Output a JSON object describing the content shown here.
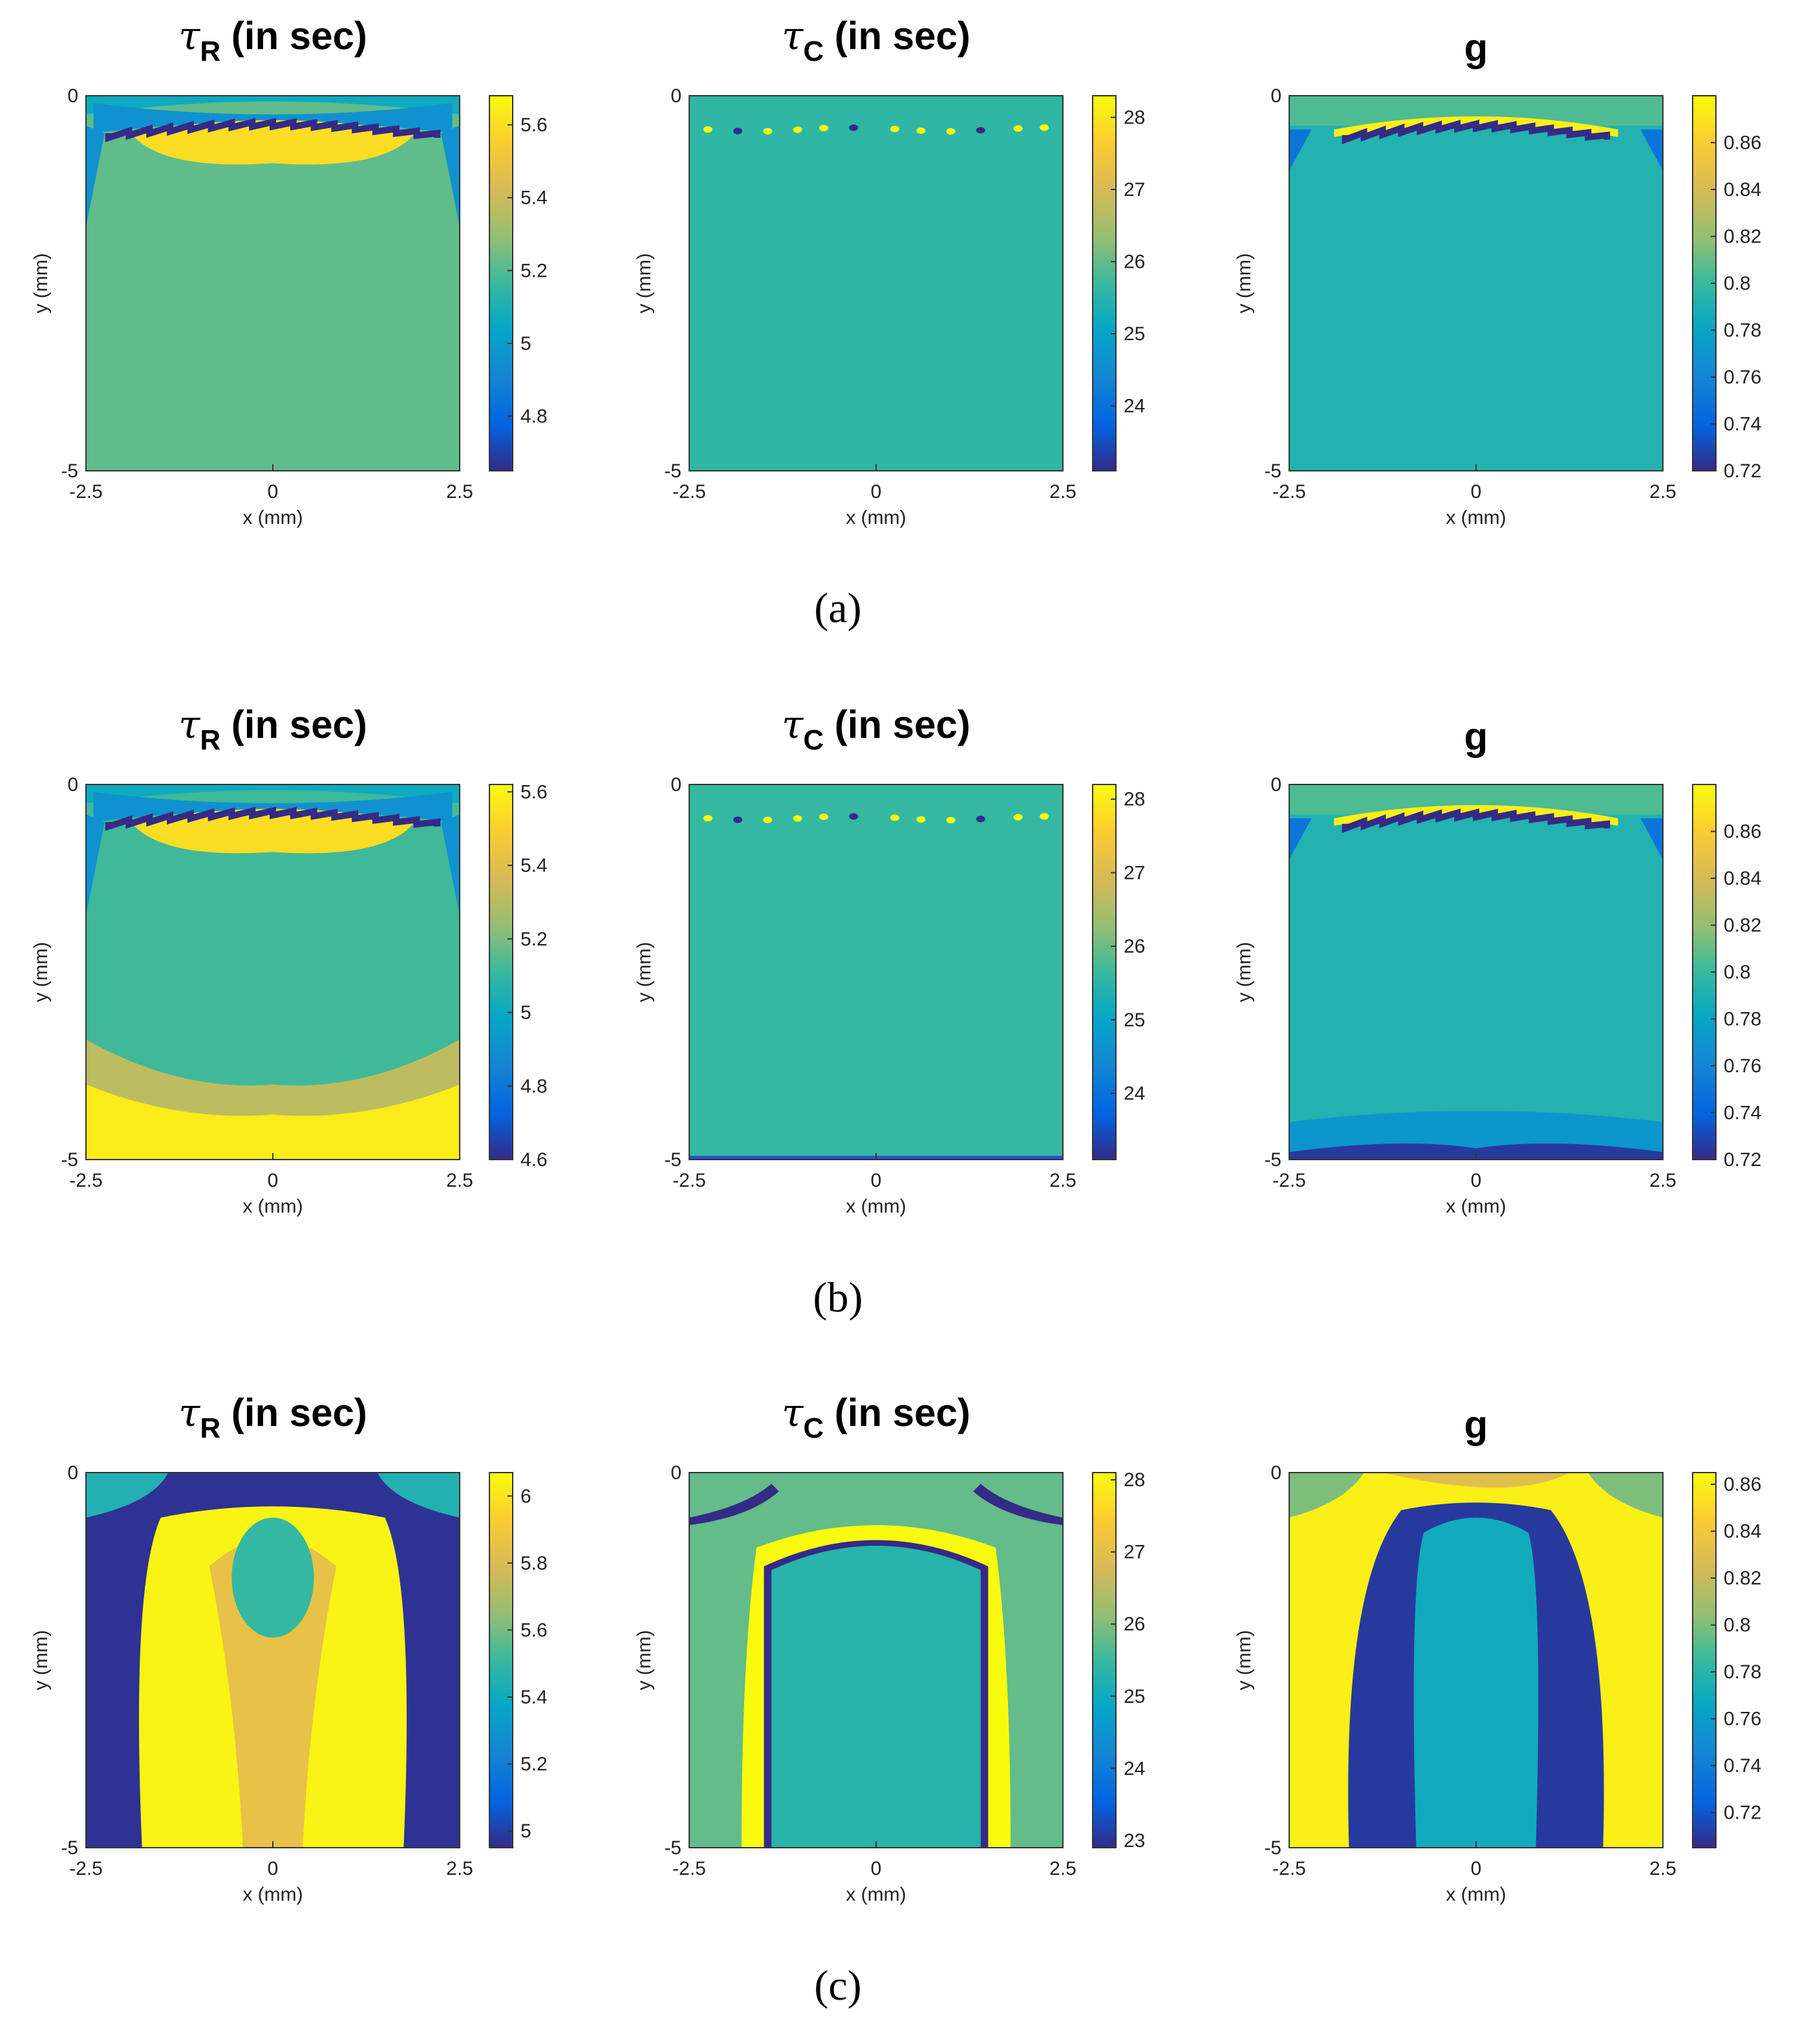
{
  "colors": {
    "parula_low": "#352a87",
    "parula_mid": "#21b3a7",
    "parula_high": "#f9fb0e",
    "axis": "#333333"
  },
  "chart_data": [
    {
      "row": "a",
      "title": "τR (in sec)",
      "title_symbol": "τ",
      "title_sub": "R",
      "title_rest": " (in sec)",
      "type": "heatmap",
      "xlabel": "x (mm)",
      "ylabel": "y (mm)",
      "xlim": [
        -2.5,
        2.5
      ],
      "ylim": [
        -5,
        0
      ],
      "xticks": [
        "-2.5",
        "0",
        "2.5"
      ],
      "yticks": [
        "0",
        "-5"
      ],
      "clim": [
        4.65,
        5.68
      ],
      "colorbar_ticks": [
        "5.6",
        "5.4",
        "5.2",
        "5",
        "4.8"
      ],
      "colorbar_tick_values": [
        5.6,
        5.4,
        5.2,
        5.0,
        4.8
      ],
      "bulk_value": 5.22,
      "top_band_value": 5.0,
      "top_cap_value": 5.62,
      "top_line_value": 4.7
    },
    {
      "row": "a",
      "title": "τC (in sec)",
      "title_symbol": "τ",
      "title_sub": "C",
      "title_rest": " (in sec)",
      "type": "heatmap",
      "xlabel": "x (mm)",
      "ylabel": "y (mm)",
      "xlim": [
        -2.5,
        2.5
      ],
      "ylim": [
        -5,
        0
      ],
      "xticks": [
        "-2.5",
        "0",
        "2.5"
      ],
      "yticks": [
        "0",
        "-5"
      ],
      "clim": [
        23.1,
        28.3
      ],
      "colorbar_ticks": [
        "28",
        "27",
        "26",
        "25",
        "24"
      ],
      "colorbar_tick_values": [
        28,
        27,
        26,
        25,
        24
      ],
      "bulk_value": 25.6
    },
    {
      "row": "a",
      "title": "g",
      "title_symbol": "",
      "title_sub": "",
      "title_rest": "g",
      "type": "heatmap",
      "xlabel": "x (mm)",
      "ylabel": "y (mm)",
      "xlim": [
        -2.5,
        2.5
      ],
      "ylim": [
        -5,
        0
      ],
      "xticks": [
        "-2.5",
        "0",
        "2.5"
      ],
      "yticks": [
        "0",
        "-5"
      ],
      "clim": [
        0.72,
        0.88
      ],
      "colorbar_ticks": [
        "0.86",
        "0.84",
        "0.82",
        "0.8",
        "0.78",
        "0.76",
        "0.74",
        "0.72"
      ],
      "colorbar_tick_values": [
        0.86,
        0.84,
        0.82,
        0.8,
        0.78,
        0.76,
        0.74,
        0.72
      ],
      "bulk_value": 0.792
    },
    {
      "row": "b",
      "title": "τR (in sec)",
      "title_symbol": "τ",
      "title_sub": "R",
      "title_rest": " (in sec)",
      "type": "heatmap",
      "xlabel": "x (mm)",
      "ylabel": "y (mm)",
      "xlim": [
        -2.5,
        2.5
      ],
      "ylim": [
        -5,
        0
      ],
      "xticks": [
        "-2.5",
        "0",
        "2.5"
      ],
      "yticks": [
        "0",
        "-5"
      ],
      "clim": [
        4.6,
        5.62
      ],
      "colorbar_ticks": [
        "5.6",
        "5.4",
        "5.2",
        "5",
        "4.8",
        "4.6"
      ],
      "colorbar_tick_values": [
        5.6,
        5.4,
        5.2,
        5.0,
        4.8,
        4.6
      ],
      "bulk_value": 5.12,
      "bottom_value": 5.58
    },
    {
      "row": "b",
      "title": "τC (in sec)",
      "title_symbol": "τ",
      "title_sub": "C",
      "title_rest": " (in sec)",
      "type": "heatmap",
      "xlabel": "x (mm)",
      "ylabel": "y (mm)",
      "xlim": [
        -2.5,
        2.5
      ],
      "ylim": [
        -5,
        0
      ],
      "xticks": [
        "-2.5",
        "0",
        "2.5"
      ],
      "yticks": [
        "0",
        "-5"
      ],
      "clim": [
        23.1,
        28.2
      ],
      "colorbar_ticks": [
        "28",
        "27",
        "26",
        "25",
        "24"
      ],
      "colorbar_tick_values": [
        28,
        27,
        26,
        25,
        24
      ],
      "bulk_value": 25.6
    },
    {
      "row": "b",
      "title": "g",
      "title_symbol": "",
      "title_sub": "",
      "title_rest": "g",
      "type": "heatmap",
      "xlabel": "x (mm)",
      "ylabel": "y (mm)",
      "xlim": [
        -2.5,
        2.5
      ],
      "ylim": [
        -5,
        0
      ],
      "xticks": [
        "-2.5",
        "0",
        "2.5"
      ],
      "yticks": [
        "0",
        "-5"
      ],
      "clim": [
        0.72,
        0.88
      ],
      "colorbar_ticks": [
        "0.86",
        "0.84",
        "0.82",
        "0.8",
        "0.78",
        "0.76",
        "0.74",
        "0.72"
      ],
      "colorbar_tick_values": [
        0.86,
        0.84,
        0.82,
        0.8,
        0.78,
        0.76,
        0.74,
        0.72
      ],
      "bulk_value": 0.792
    },
    {
      "row": "c",
      "title": "τR (in sec)",
      "title_symbol": "τ",
      "title_sub": "R",
      "title_rest": " (in sec)",
      "type": "heatmap",
      "xlabel": "x (mm)",
      "ylabel": "y (mm)",
      "xlim": [
        -2.5,
        2.5
      ],
      "ylim": [
        -5,
        0
      ],
      "xticks": [
        "-2.5",
        "0",
        "2.5"
      ],
      "yticks": [
        "0",
        "-5"
      ],
      "clim": [
        4.95,
        6.07
      ],
      "colorbar_ticks": [
        "6",
        "5.8",
        "5.6",
        "5.4",
        "5.2",
        "5"
      ],
      "colorbar_tick_values": [
        6.0,
        5.8,
        5.6,
        5.4,
        5.2,
        5.0
      ],
      "outer_value": 4.97,
      "column_value": 6.05,
      "core_value": 5.5
    },
    {
      "row": "c",
      "title": "τC (in sec)",
      "title_symbol": "τ",
      "title_sub": "C",
      "title_rest": " (in sec)",
      "type": "heatmap",
      "xlabel": "x (mm)",
      "ylabel": "y (mm)",
      "xlim": [
        -2.5,
        2.5
      ],
      "ylim": [
        -5,
        0
      ],
      "xticks": [
        "-2.5",
        "0",
        "2.5"
      ],
      "yticks": [
        "0",
        "-5"
      ],
      "clim": [
        22.9,
        28.1
      ],
      "colorbar_ticks": [
        "28",
        "27",
        "26",
        "25",
        "24",
        "23"
      ],
      "colorbar_tick_values": [
        28,
        27,
        26,
        25,
        24,
        23
      ],
      "bulk_value": 25.8,
      "core_value": 25.3
    },
    {
      "row": "c",
      "title": "g",
      "title_symbol": "",
      "title_sub": "",
      "title_rest": "g",
      "type": "heatmap",
      "xlabel": "x (mm)",
      "ylabel": "y (mm)",
      "xlim": [
        -2.5,
        2.5
      ],
      "ylim": [
        -5,
        0
      ],
      "xticks": [
        "-2.5",
        "0",
        "2.5"
      ],
      "yticks": [
        "0",
        "-5"
      ],
      "clim": [
        0.705,
        0.865
      ],
      "colorbar_ticks": [
        "0.86",
        "0.84",
        "0.82",
        "0.8",
        "0.78",
        "0.76",
        "0.74",
        "0.72"
      ],
      "colorbar_tick_values": [
        0.86,
        0.84,
        0.82,
        0.8,
        0.78,
        0.76,
        0.74,
        0.72
      ],
      "outer_value": 0.86,
      "ring_value": 0.71,
      "core_value": 0.77
    }
  ],
  "captions": [
    "(a)",
    "(b)",
    "(c)"
  ]
}
